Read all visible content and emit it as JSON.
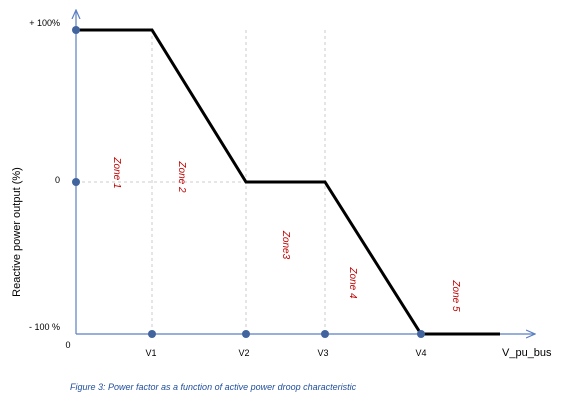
{
  "chart_data": {
    "type": "line",
    "title": "",
    "xlabel": "V_pu_bus",
    "ylabel": "Reactive power output (%)",
    "ylim": [
      -100,
      100
    ],
    "x_categories": [
      "0",
      "V1",
      "V2",
      "V3",
      "V4"
    ],
    "y_ticks": [
      {
        "value": 100,
        "label": "+ 100%"
      },
      {
        "value": 0,
        "label": "0"
      },
      {
        "value": -100,
        "label": "- 100 %"
      }
    ],
    "series": [
      {
        "name": "Reactive power output",
        "points": [
          {
            "x": "0",
            "y": 100
          },
          {
            "x": "V1",
            "y": 100
          },
          {
            "x": "V2",
            "y": 0
          },
          {
            "x": "V3",
            "y": 0
          },
          {
            "x": "V4",
            "y": -100
          }
        ],
        "extends_right_at": -100
      }
    ],
    "markers": [
      {
        "x": "0",
        "y": 100
      },
      {
        "x": "0",
        "y": 0
      },
      {
        "x": "V1",
        "y": -100
      },
      {
        "x": "V2",
        "y": -100
      },
      {
        "x": "V3",
        "y": -100
      },
      {
        "x": "V4",
        "y": -100
      }
    ],
    "zones": [
      "Zone 1",
      "Zone 2",
      "Zone3",
      "Zone 4",
      "Zone 5"
    ],
    "colors": {
      "line": "#000000",
      "axis": "#5b7fc2",
      "marker": "#41649e",
      "zone": "#c00000",
      "grid": "#bfbfbf"
    }
  },
  "caption": "Figure 3: Power factor as a function of active power droop characteristic"
}
